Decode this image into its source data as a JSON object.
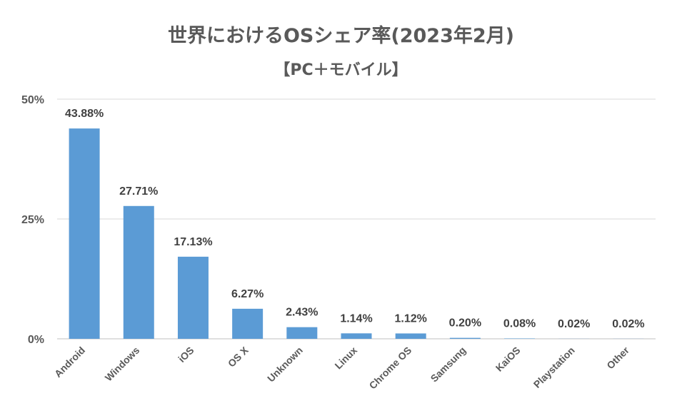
{
  "chart_data": {
    "type": "bar",
    "title": "世界におけるOSシェア率(2023年2月)",
    "subtitle": "【PC＋モバイル】",
    "categories": [
      "Android",
      "Windows",
      "iOS",
      "OS X",
      "Unknown",
      "Linux",
      "Chrome OS",
      "Samsung",
      "KaiOS",
      "Playstation",
      "Other"
    ],
    "values": [
      43.88,
      27.71,
      17.13,
      6.27,
      2.43,
      1.14,
      1.12,
      0.2,
      0.08,
      0.02,
      0.02
    ],
    "value_labels": [
      "43.88%",
      "27.71%",
      "17.13%",
      "6.27%",
      "2.43%",
      "1.14%",
      "1.12%",
      "0.20%",
      "0.08%",
      "0.02%",
      "0.02%"
    ],
    "yticks": [
      0,
      25,
      50
    ],
    "ytick_labels": [
      "0%",
      "25%",
      "50%"
    ],
    "ylim": [
      0,
      50
    ],
    "grid": true,
    "bar_color": "#5b9bd5"
  }
}
